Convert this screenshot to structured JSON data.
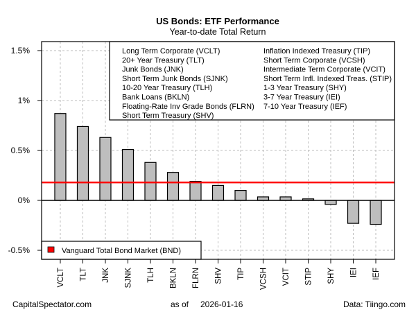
{
  "chart_data": {
    "type": "bar",
    "title": "US Bonds: ETF Performance",
    "subtitle": "Year-to-date Total Return",
    "xlabel": "",
    "ylabel": "",
    "ylim": [
      -0.6,
      1.6
    ],
    "yticks": [
      -0.5,
      0,
      0.5,
      1,
      1.5
    ],
    "ytick_labels": [
      "-0.5%",
      "0%",
      "0.5%",
      "1%",
      "1.5%"
    ],
    "grid": true,
    "categories": [
      "VCLT",
      "TLT",
      "JNK",
      "SJNK",
      "TLH",
      "BKLN",
      "FLRN",
      "SHV",
      "TIP",
      "VCSH",
      "VCIT",
      "STIP",
      "SHY",
      "IEI",
      "IEF"
    ],
    "values": [
      0.87,
      0.74,
      0.63,
      0.51,
      0.38,
      0.28,
      0.19,
      0.15,
      0.1,
      0.035,
      0.035,
      0.015,
      -0.04,
      -0.23,
      -0.24
    ],
    "units": "%",
    "bar_color": "#bebebe",
    "reference_line": {
      "name": "Vanguard Total Bond Market (BND)",
      "value": 0.18,
      "color": "#ff0000"
    },
    "legend_names": {
      "placement": "top-right",
      "columns": [
        [
          "Long Term Corporate (VCLT)",
          "20+ Year Treasury (TLT)",
          "Junk Bonds (JNK)",
          "Short Term Junk Bonds (SJNK)",
          "10-20 Year Treasury (TLH)",
          "Bank Loans (BKLN)",
          "Floating-Rate Inv Grade Bonds (FLRN)",
          "Short Term Treasury (SHV)"
        ],
        [
          "Inflation Indexed Treasury (TIP)",
          "Short Term Corporate (VCSH)",
          "Intermediate Term Corporate (VCIT)",
          "Short Term Infl. Indexed Treas. (STIP)",
          "1-3 Year Treasury (SHY)",
          "3-7 Year Treasury (IEI)",
          "7-10 Year Treasury (IEF)"
        ]
      ]
    },
    "legend_reference": {
      "placement": "bottom-left",
      "label": "Vanguard Total Bond Market (BND)"
    }
  },
  "footer": {
    "left": "CapitalSpectator.com",
    "center_prefix": "as of",
    "center_date": "2026-01-16",
    "right": "Data: Tiingo.com"
  }
}
